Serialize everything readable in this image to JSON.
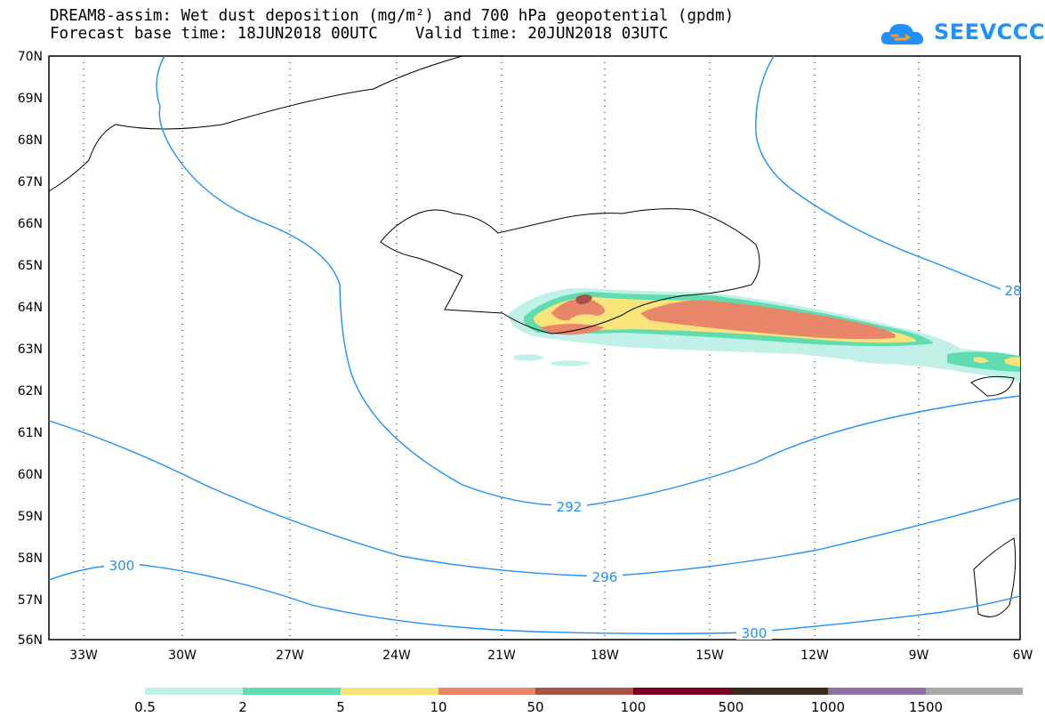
{
  "header": {
    "title_line1": "DREAM8-assim: Wet dust deposition (mg/m²) and 700 hPa geopotential (gpdm)",
    "title_line2": "Forecast base time: 18JUN2018 00UTC    Valid time: 20JUN2018 03UTC",
    "logo_text": "SEEVCCC"
  },
  "map": {
    "lat_labels": [
      "70N",
      "69N",
      "68N",
      "67N",
      "66N",
      "65N",
      "64N",
      "63N",
      "62N",
      "61N",
      "60N",
      "59N",
      "58N",
      "57N",
      "56N"
    ],
    "lon_labels": [
      "33W",
      "30W",
      "27W",
      "24W",
      "21W",
      "18W",
      "15W",
      "12W",
      "9W",
      "6W"
    ],
    "contour_labels": [
      "292",
      "296",
      "300",
      "300",
      "28"
    ],
    "dust_colors": [
      "#c1f0e8",
      "#5fdcb0",
      "#f8e47a",
      "#e8866a",
      "#a8524a"
    ]
  },
  "legend": {
    "labels": [
      "0.5",
      "2",
      "5",
      "10",
      "50",
      "100",
      "500",
      "1000",
      "1500"
    ],
    "colors": [
      "#c1f0e8",
      "#5fdcb0",
      "#f8e47a",
      "#e8866a",
      "#a8524a",
      "#7a0020",
      "#3a2818",
      "#9070a0",
      "#a8a8a8"
    ]
  }
}
